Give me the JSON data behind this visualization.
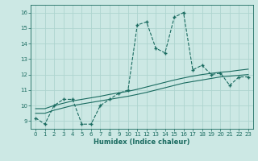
{
  "title": "",
  "xlabel": "Humidex (Indice chaleur)",
  "ylabel": "",
  "bg_color": "#cce8e4",
  "line_color": "#1a6b60",
  "grid_color": "#aed4cf",
  "xlim": [
    -0.5,
    23.5
  ],
  "ylim": [
    8.5,
    16.5
  ],
  "yticks": [
    9,
    10,
    11,
    12,
    13,
    14,
    15,
    16
  ],
  "xticks": [
    0,
    1,
    2,
    3,
    4,
    5,
    6,
    7,
    8,
    9,
    10,
    11,
    12,
    13,
    14,
    15,
    16,
    17,
    18,
    19,
    20,
    21,
    22,
    23
  ],
  "series1_x": [
    0,
    1,
    2,
    3,
    4,
    5,
    6,
    7,
    8,
    9,
    10,
    11,
    12,
    13,
    14,
    15,
    16,
    17,
    18,
    19,
    20,
    21,
    22,
    23
  ],
  "series1_y": [
    9.2,
    8.8,
    10.0,
    10.4,
    10.4,
    8.8,
    8.8,
    10.0,
    10.4,
    10.8,
    11.0,
    15.2,
    15.4,
    13.7,
    13.4,
    15.7,
    16.0,
    12.3,
    12.6,
    12.0,
    12.1,
    11.3,
    11.85,
    11.85
  ],
  "series2_x": [
    0,
    1,
    2,
    3,
    4,
    5,
    6,
    7,
    8,
    9,
    10,
    11,
    12,
    13,
    14,
    15,
    16,
    17,
    18,
    19,
    20,
    21,
    22,
    23
  ],
  "series2_y": [
    9.5,
    9.5,
    9.7,
    9.85,
    10.0,
    10.1,
    10.2,
    10.3,
    10.4,
    10.5,
    10.6,
    10.72,
    10.85,
    11.0,
    11.15,
    11.3,
    11.45,
    11.55,
    11.65,
    11.75,
    11.85,
    11.9,
    11.95,
    12.0
  ],
  "series3_x": [
    0,
    1,
    2,
    3,
    4,
    5,
    6,
    7,
    8,
    9,
    10,
    11,
    12,
    13,
    14,
    15,
    16,
    17,
    18,
    19,
    20,
    21,
    22,
    23
  ],
  "series3_y": [
    9.8,
    9.8,
    10.0,
    10.15,
    10.3,
    10.4,
    10.5,
    10.6,
    10.72,
    10.82,
    10.92,
    11.05,
    11.2,
    11.35,
    11.5,
    11.65,
    11.78,
    11.9,
    12.0,
    12.08,
    12.15,
    12.2,
    12.28,
    12.35
  ]
}
